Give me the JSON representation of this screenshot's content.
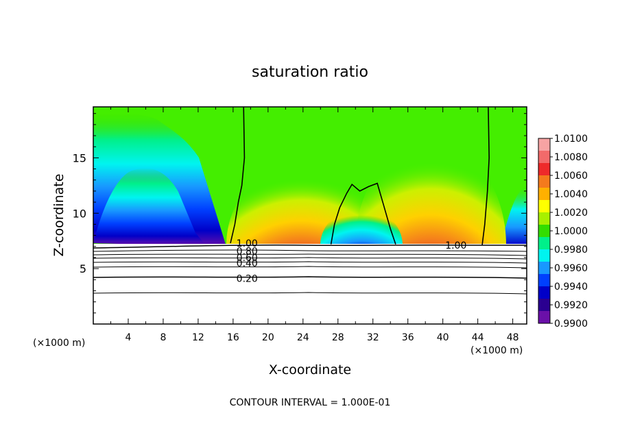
{
  "chart_data": {
    "type": "heatmap",
    "title": "saturation ratio",
    "xlabel": "X-coordinate",
    "ylabel": "Z-coordinate",
    "x_unit": "(×1000 m)",
    "footer": "CONTOUR INTERVAL = 1.000E-01",
    "xlim": [
      0,
      49.6
    ],
    "ylim": [
      0,
      19.6
    ],
    "x_ticks": [
      4,
      8,
      12,
      16,
      20,
      24,
      28,
      32,
      36,
      40,
      44,
      48
    ],
    "y_ticks": [
      5,
      10,
      15
    ],
    "colorbar": {
      "ticks": [
        "1.0100",
        "1.0080",
        "1.0060",
        "1.0040",
        "1.0020",
        "1.0000",
        "0.9980",
        "0.9960",
        "0.9940",
        "0.9920",
        "0.9900"
      ],
      "colors": [
        "#f7a3a3",
        "#f26a6a",
        "#ee2a2a",
        "#f47a1d",
        "#ffb000",
        "#ffff00",
        "#a8f000",
        "#33dd00",
        "#00f08a",
        "#00f4f0",
        "#1898ff",
        "#0040ff",
        "#0000c8",
        "#2a0090",
        "#6a10a8"
      ]
    },
    "contour_labels": [
      {
        "text": "1.00",
        "x": 17.6,
        "z": 7.3
      },
      {
        "text": "0.80",
        "x": 17.6,
        "z": 6.6
      },
      {
        "text": "0.60",
        "x": 17.6,
        "z": 6.0
      },
      {
        "text": "0.40",
        "x": 17.6,
        "z": 5.5
      },
      {
        "text": "0.20",
        "x": 17.6,
        "z": 4.1
      },
      {
        "text": "1.00",
        "x": 41.5,
        "z": 7.1
      }
    ],
    "series": [
      {
        "level": "1.00",
        "x": [
          17.2,
          17.3,
          17.0,
          16.6,
          16.2,
          15.7
        ],
        "z": [
          19.6,
          15.0,
          12.5,
          11.0,
          9.0,
          7.3
        ]
      },
      {
        "level": "1.00",
        "x": [
          27.2,
          27.6,
          28.2,
          29.0,
          29.6,
          30.5,
          31.5,
          32.5,
          33.2,
          34.0,
          34.6
        ],
        "z": [
          7.2,
          9.0,
          10.5,
          11.8,
          12.6,
          12.0,
          12.4,
          12.7,
          10.8,
          8.6,
          7.2
        ]
      },
      {
        "level": "1.00",
        "x": [
          45.2,
          45.3,
          45.1,
          44.8,
          44.5
        ],
        "z": [
          19.6,
          15.0,
          12.0,
          9.0,
          7.1
        ]
      }
    ]
  }
}
